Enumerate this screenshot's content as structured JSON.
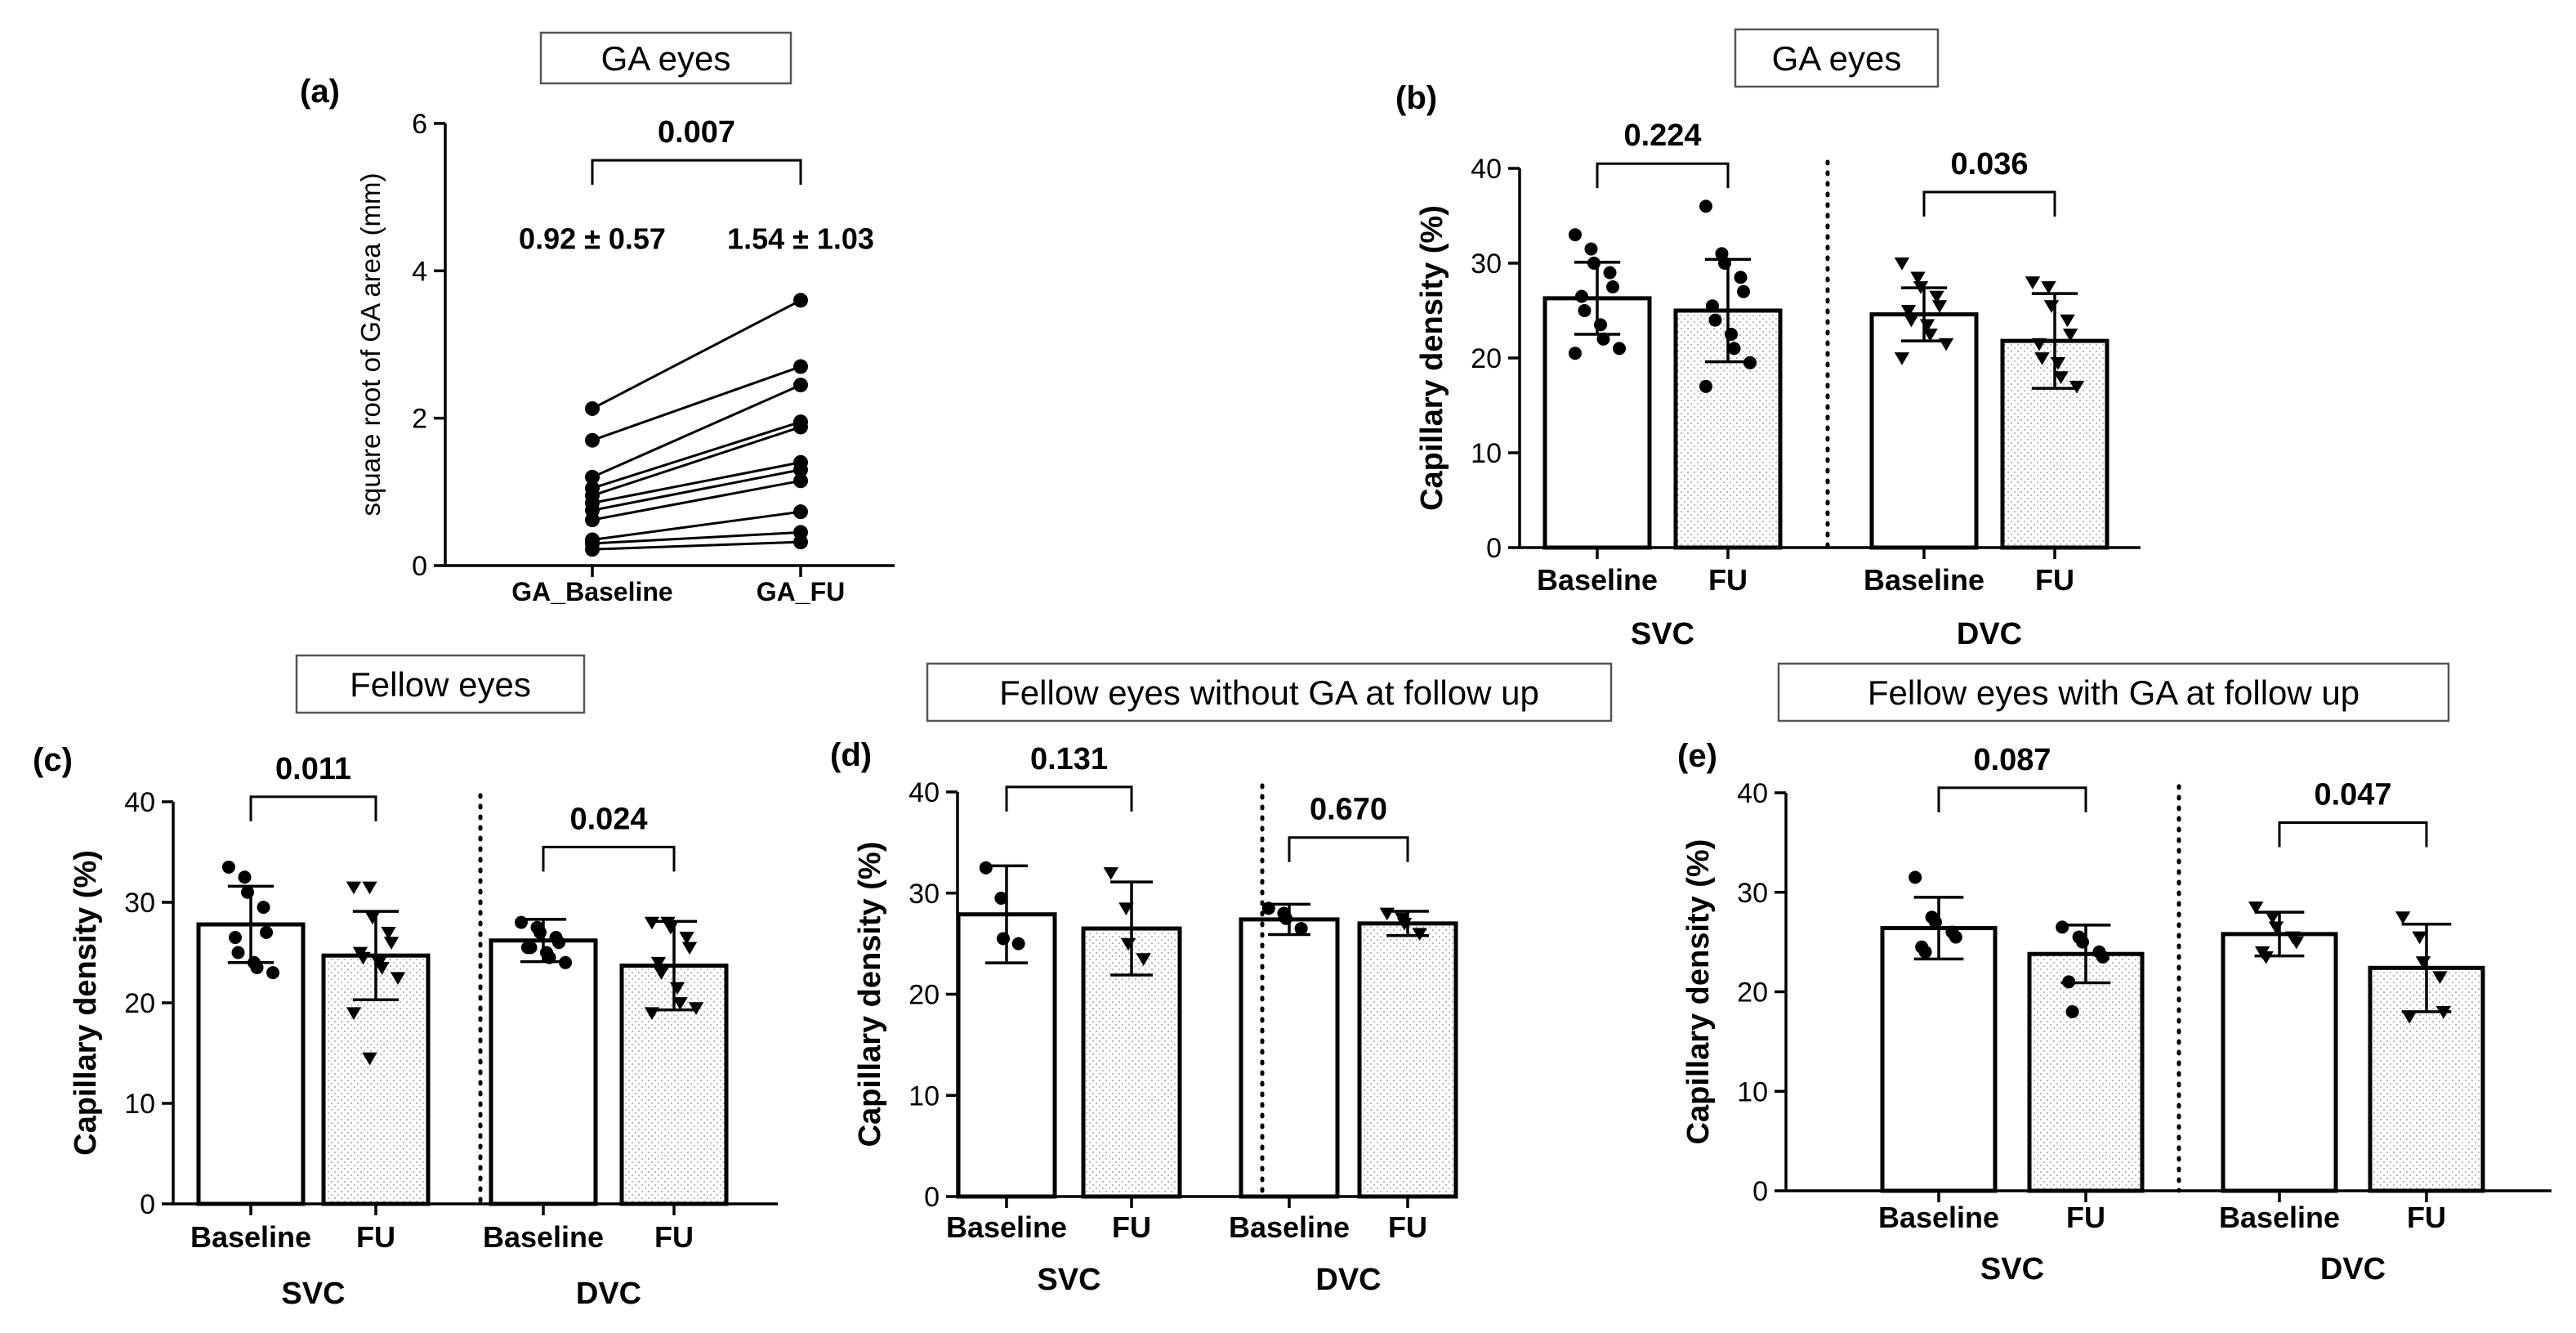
{
  "figure": {
    "background": "#ffffff",
    "ink": "#000000",
    "dot_fill": "#c8c8c8"
  },
  "chart_data": [
    {
      "id": "a",
      "type": "paired-line",
      "panel_label": "(a)",
      "title": "GA eyes",
      "ylabel": "square root of GA area  (mm)",
      "ylim": [
        0,
        6
      ],
      "yticks": [
        0,
        2,
        4,
        6
      ],
      "categories": [
        "GA_Baseline",
        "GA_FU"
      ],
      "summary_labels": [
        "0.92 ± 0.57",
        "1.54 ± 1.03"
      ],
      "comparisons": [
        {
          "from": 0,
          "to": 1,
          "label": "0.007",
          "y": 5.5
        }
      ],
      "pairs": [
        [
          2.13,
          3.6
        ],
        [
          1.7,
          2.7
        ],
        [
          1.2,
          2.45
        ],
        [
          1.05,
          1.95
        ],
        [
          0.95,
          1.88
        ],
        [
          0.85,
          1.4
        ],
        [
          0.75,
          1.3
        ],
        [
          0.62,
          1.15
        ],
        [
          0.35,
          0.73
        ],
        [
          0.3,
          0.45
        ],
        [
          0.22,
          0.32
        ]
      ]
    },
    {
      "id": "b",
      "type": "bar",
      "panel_label": "(b)",
      "title": "GA eyes",
      "ylabel": "Capillary density (%)",
      "ylim": [
        0,
        40
      ],
      "yticks": [
        0,
        10,
        20,
        30,
        40
      ],
      "categories": [
        "Baseline",
        "FU",
        "Baseline",
        "FU"
      ],
      "groups": [
        "SVC",
        "DVC"
      ],
      "values": [
        26.3,
        25.0,
        24.6,
        21.8
      ],
      "sd": [
        3.8,
        5.4,
        2.8,
        5.0
      ],
      "markers": [
        "circle",
        "circle",
        "triangle",
        "triangle"
      ],
      "points": [
        [
          33,
          31.5,
          30,
          29,
          27.5,
          26.5,
          25,
          23.5,
          22,
          21,
          20.5
        ],
        [
          36,
          31,
          30,
          28.5,
          27,
          25.5,
          24,
          22.5,
          21,
          19.5,
          17
        ],
        [
          30,
          28.5,
          27.5,
          26.5,
          25.5,
          25,
          24,
          23.5,
          22.5,
          21.5,
          20
        ],
        [
          28,
          27.5,
          25.5,
          24,
          22.5,
          21.5,
          20,
          19.5,
          18,
          17
        ]
      ],
      "comparisons": [
        {
          "from": 0,
          "to": 1,
          "label": "0.224",
          "y": 40.5
        },
        {
          "from": 2,
          "to": 3,
          "label": "0.036",
          "y": 37.5
        }
      ]
    },
    {
      "id": "c",
      "type": "bar",
      "panel_label": "(c)",
      "title": "Fellow eyes",
      "ylabel": "Capillary density (%)",
      "ylim": [
        0,
        40
      ],
      "yticks": [
        0,
        10,
        20,
        30,
        40
      ],
      "categories": [
        "Baseline",
        "FU",
        "Baseline",
        "FU"
      ],
      "groups": [
        "SVC",
        "DVC"
      ],
      "values": [
        27.8,
        24.7,
        26.2,
        23.7
      ],
      "sd": [
        3.8,
        4.4,
        2.1,
        4.4
      ],
      "markers": [
        "circle",
        "triangle",
        "circle",
        "triangle"
      ],
      "points": [
        [
          33.5,
          32.5,
          31,
          29.5,
          27,
          26.5,
          25,
          24,
          23.5,
          23
        ],
        [
          31.5,
          31.5,
          28.5,
          27,
          26,
          25,
          24.5,
          24,
          23.5,
          22.5,
          19,
          14.5
        ],
        [
          28,
          27.5,
          27,
          26.5,
          26,
          25.5,
          25.5,
          25,
          24.5,
          24
        ],
        [
          28,
          28,
          27.5,
          26.5,
          25.5,
          24,
          23,
          21.5,
          20,
          19.5,
          19
        ]
      ],
      "comparisons": [
        {
          "from": 0,
          "to": 1,
          "label": "0.011",
          "y": 40.5
        },
        {
          "from": 2,
          "to": 3,
          "label": "0.024",
          "y": 35.5
        }
      ]
    },
    {
      "id": "d",
      "type": "bar",
      "panel_label": "(d)",
      "title": "Fellow eyes without GA at follow up",
      "ylabel": "Capillary density (%)",
      "ylim": [
        0,
        40
      ],
      "yticks": [
        0,
        10,
        20,
        30,
        40
      ],
      "categories": [
        "Baseline",
        "FU",
        "Baseline",
        "FU"
      ],
      "groups": [
        "SVC",
        "DVC"
      ],
      "values": [
        27.9,
        26.5,
        27.4,
        27.0
      ],
      "sd": [
        4.8,
        4.6,
        1.5,
        1.2
      ],
      "markers": [
        "circle",
        "triangle",
        "circle",
        "triangle"
      ],
      "points": [
        [
          32.5,
          29.5,
          25.5,
          25
        ],
        [
          32,
          28.5,
          25,
          23.5
        ],
        [
          28.5,
          28,
          27.5,
          26.5
        ],
        [
          28,
          27.5,
          27,
          26
        ]
      ],
      "comparisons": [
        {
          "from": 0,
          "to": 1,
          "label": "0.131",
          "y": 40.5
        },
        {
          "from": 2,
          "to": 3,
          "label": "0.670",
          "y": 35.5
        }
      ]
    },
    {
      "id": "e",
      "type": "bar",
      "panel_label": "(e)",
      "title": "Fellow eyes with GA at follow up",
      "ylabel": "Capillary density (%)",
      "ylim": [
        0,
        40
      ],
      "yticks": [
        0,
        10,
        20,
        30,
        40
      ],
      "categories": [
        "Baseline",
        "FU",
        "Baseline",
        "FU"
      ],
      "groups": [
        "SVC",
        "DVC"
      ],
      "values": [
        26.4,
        23.8,
        25.8,
        22.4
      ],
      "sd": [
        3.1,
        2.9,
        2.2,
        4.4
      ],
      "markers": [
        "circle",
        "circle",
        "triangle",
        "triangle"
      ],
      "points": [
        [
          31.5,
          27.5,
          27,
          26,
          25.5,
          24.5,
          24
        ],
        [
          26.5,
          25.5,
          25,
          24,
          23.5,
          21,
          18
        ],
        [
          28.5,
          27.5,
          26.5,
          25.5,
          25,
          24,
          23.5
        ],
        [
          27.5,
          25.5,
          23,
          21.5,
          18,
          17.5
        ]
      ],
      "comparisons": [
        {
          "from": 0,
          "to": 1,
          "label": "0.087",
          "y": 40.5
        },
        {
          "from": 2,
          "to": 3,
          "label": "0.047",
          "y": 37
        }
      ]
    }
  ]
}
